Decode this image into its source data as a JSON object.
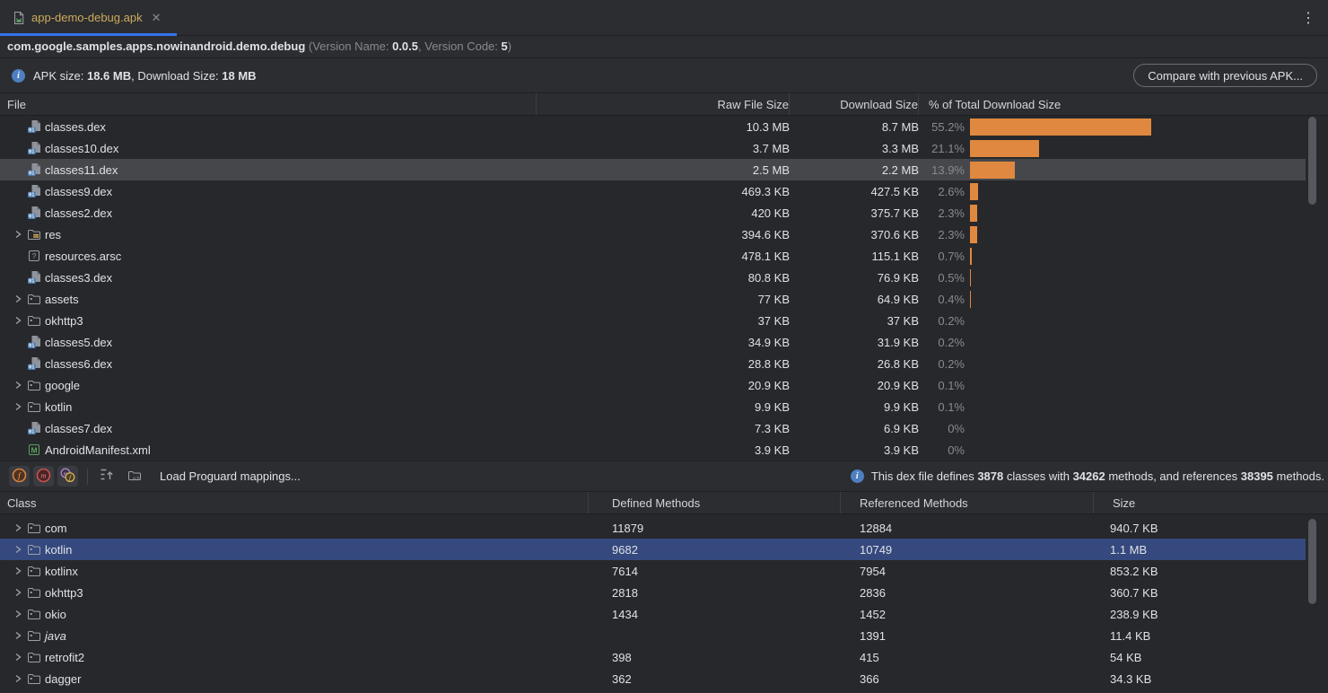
{
  "tab": {
    "title": "app-demo-debug.apk",
    "close_glyph": "✕",
    "kebab_glyph": "⋮"
  },
  "header": {
    "package_name": "com.google.samples.apps.nowinandroid.demo.debug",
    "version_prefix": " (Version Name: ",
    "version_name": "0.0.5",
    "version_mid": ", Version Code: ",
    "version_code": "5",
    "version_suffix": ")",
    "apk_size_label": "APK size: ",
    "apk_size": "18.6 MB",
    "download_size_label": ", Download Size: ",
    "download_size": "18 MB",
    "compare_button": "Compare with previous APK..."
  },
  "file_table": {
    "columns": {
      "file": "File",
      "raw": "Raw File Size",
      "download": "Download Size",
      "pct": "% of Total Download Size"
    },
    "rows": [
      {
        "name": "classes.dex",
        "icon": "dex-file-icon",
        "chevron": false,
        "raw": "10.3 MB",
        "download": "8.7 MB",
        "pct": "55.2%",
        "pct_value": 55.2,
        "selected": false
      },
      {
        "name": "classes10.dex",
        "icon": "dex-file-icon",
        "chevron": false,
        "raw": "3.7 MB",
        "download": "3.3 MB",
        "pct": "21.1%",
        "pct_value": 21.1,
        "selected": false
      },
      {
        "name": "classes11.dex",
        "icon": "dex-file-icon",
        "chevron": false,
        "raw": "2.5 MB",
        "download": "2.2 MB",
        "pct": "13.9%",
        "pct_value": 13.9,
        "selected": true
      },
      {
        "name": "classes9.dex",
        "icon": "dex-file-icon",
        "chevron": false,
        "raw": "469.3 KB",
        "download": "427.5 KB",
        "pct": "2.6%",
        "pct_value": 2.6,
        "selected": false
      },
      {
        "name": "classes2.dex",
        "icon": "dex-file-icon",
        "chevron": false,
        "raw": "420 KB",
        "download": "375.7 KB",
        "pct": "2.3%",
        "pct_value": 2.3,
        "selected": false
      },
      {
        "name": "res",
        "icon": "res-folder-icon",
        "chevron": true,
        "raw": "394.6 KB",
        "download": "370.6 KB",
        "pct": "2.3%",
        "pct_value": 2.3,
        "selected": false
      },
      {
        "name": "resources.arsc",
        "icon": "arsc-file-icon",
        "chevron": false,
        "raw": "478.1 KB",
        "download": "115.1 KB",
        "pct": "0.7%",
        "pct_value": 0.7,
        "selected": false
      },
      {
        "name": "classes3.dex",
        "icon": "dex-file-icon",
        "chevron": false,
        "raw": "80.8 KB",
        "download": "76.9 KB",
        "pct": "0.5%",
        "pct_value": 0.5,
        "selected": false
      },
      {
        "name": "assets",
        "icon": "folder-icon",
        "chevron": true,
        "raw": "77 KB",
        "download": "64.9 KB",
        "pct": "0.4%",
        "pct_value": 0.4,
        "selected": false
      },
      {
        "name": "okhttp3",
        "icon": "folder-icon",
        "chevron": true,
        "raw": "37 KB",
        "download": "37 KB",
        "pct": "0.2%",
        "pct_value": 0.2,
        "selected": false
      },
      {
        "name": "classes5.dex",
        "icon": "dex-file-icon",
        "chevron": false,
        "raw": "34.9 KB",
        "download": "31.9 KB",
        "pct": "0.2%",
        "pct_value": 0.2,
        "selected": false
      },
      {
        "name": "classes6.dex",
        "icon": "dex-file-icon",
        "chevron": false,
        "raw": "28.8 KB",
        "download": "26.8 KB",
        "pct": "0.2%",
        "pct_value": 0.2,
        "selected": false
      },
      {
        "name": "google",
        "icon": "folder-icon",
        "chevron": true,
        "raw": "20.9 KB",
        "download": "20.9 KB",
        "pct": "0.1%",
        "pct_value": 0.1,
        "selected": false
      },
      {
        "name": "kotlin",
        "icon": "folder-icon",
        "chevron": true,
        "raw": "9.9 KB",
        "download": "9.9 KB",
        "pct": "0.1%",
        "pct_value": 0.1,
        "selected": false
      },
      {
        "name": "classes7.dex",
        "icon": "dex-file-icon",
        "chevron": false,
        "raw": "7.3 KB",
        "download": "6.9 KB",
        "pct": "0%",
        "pct_value": 0,
        "selected": false
      },
      {
        "name": "AndroidManifest.xml",
        "icon": "manifest-file-icon",
        "chevron": false,
        "raw": "3.9 KB",
        "download": "3.9 KB",
        "pct": "0%",
        "pct_value": 0,
        "selected": false
      }
    ]
  },
  "toolbar": {
    "load_mappings_label": "Load Proguard mappings...",
    "buttons": [
      {
        "icon": "fields-toggle-icon"
      },
      {
        "icon": "methods-toggle-icon"
      },
      {
        "icon": "references-toggle-icon"
      }
    ],
    "extra_icons": [
      {
        "icon": "expand-tree-icon"
      },
      {
        "icon": "proguard-folder-icon"
      }
    ]
  },
  "dex_info": {
    "prefix": "This dex file defines ",
    "classes": "3878",
    "mid1": " classes with ",
    "methods": "34262",
    "mid2": " methods, and references ",
    "references": "38395",
    "suffix": " methods."
  },
  "class_table": {
    "columns": {
      "class": "Class",
      "defined": "Defined Methods",
      "referenced": "Referenced Methods",
      "size": "Size"
    },
    "rows": [
      {
        "name": "com",
        "defined": "11879",
        "referenced": "12884",
        "size": "940.7 KB",
        "selected": false,
        "italic": false
      },
      {
        "name": "kotlin",
        "defined": "9682",
        "referenced": "10749",
        "size": "1.1 MB",
        "selected": true,
        "italic": false
      },
      {
        "name": "kotlinx",
        "defined": "7614",
        "referenced": "7954",
        "size": "853.2 KB",
        "selected": false,
        "italic": false
      },
      {
        "name": "okhttp3",
        "defined": "2818",
        "referenced": "2836",
        "size": "360.7 KB",
        "selected": false,
        "italic": false
      },
      {
        "name": "okio",
        "defined": "1434",
        "referenced": "1452",
        "size": "238.9 KB",
        "selected": false,
        "italic": false
      },
      {
        "name": "java",
        "defined": "",
        "referenced": "1391",
        "size": "11.4 KB",
        "selected": false,
        "italic": true
      },
      {
        "name": "retrofit2",
        "defined": "398",
        "referenced": "415",
        "size": "54 KB",
        "selected": false,
        "italic": false
      },
      {
        "name": "dagger",
        "defined": "362",
        "referenced": "366",
        "size": "34.3 KB",
        "selected": false,
        "italic": false
      }
    ]
  },
  "colors": {
    "accent_bar": "#e0883f",
    "tab_underline": "#3574f0",
    "tab_label": "#cfa95e",
    "selection_gray": "#45474b",
    "selection_blue": "#35497e",
    "muted_text": "#868a91"
  }
}
